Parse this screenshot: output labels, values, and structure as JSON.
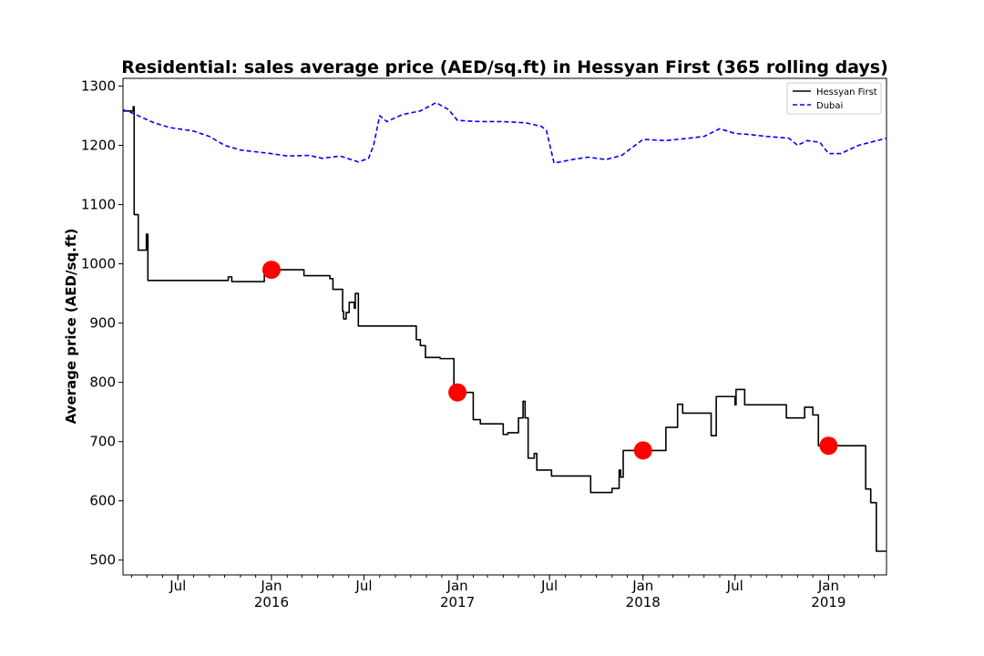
{
  "chart_data": {
    "type": "line",
    "title": "Residential: sales average price (AED/sq.ft) in Hessyan First (365 rolling days)",
    "xlabel": "",
    "ylabel": "Average price (AED/sq.ft)",
    "xlim": [
      "2015-03-15",
      "2019-04-25"
    ],
    "ylim": [
      475,
      1313
    ],
    "y_ticks": [
      500,
      600,
      700,
      800,
      900,
      1000,
      1100,
      1200,
      1300
    ],
    "x_ticks": [
      {
        "date": "2015-07-01",
        "label": "Jul",
        "sublabel": ""
      },
      {
        "date": "2016-01-01",
        "label": "Jan",
        "sublabel": "2016"
      },
      {
        "date": "2016-07-01",
        "label": "Jul",
        "sublabel": ""
      },
      {
        "date": "2017-01-01",
        "label": "Jan",
        "sublabel": "2017"
      },
      {
        "date": "2017-07-01",
        "label": "Jul",
        "sublabel": ""
      },
      {
        "date": "2018-01-01",
        "label": "Jan",
        "sublabel": "2018"
      },
      {
        "date": "2018-07-01",
        "label": "Jul",
        "sublabel": ""
      },
      {
        "date": "2019-01-01",
        "label": "Jan",
        "sublabel": "2019"
      }
    ],
    "legend": {
      "placement": "upper right"
    },
    "series": [
      {
        "name": "Hessyan First",
        "color": "#000000",
        "style": "solid",
        "step": true,
        "points": [
          [
            "2015-03-15",
            1258
          ],
          [
            "2015-04-03",
            1258
          ],
          [
            "2015-04-04",
            1265
          ],
          [
            "2015-04-06",
            1083
          ],
          [
            "2015-04-14",
            1023
          ],
          [
            "2015-04-30",
            1050
          ],
          [
            "2015-05-03",
            972
          ],
          [
            "2015-10-01",
            972
          ],
          [
            "2015-10-08",
            978
          ],
          [
            "2015-10-15",
            970
          ],
          [
            "2015-12-15",
            970
          ],
          [
            "2015-12-18",
            990
          ],
          [
            "2016-03-05",
            980
          ],
          [
            "2016-04-25",
            975
          ],
          [
            "2016-05-01",
            957
          ],
          [
            "2016-05-20",
            920
          ],
          [
            "2016-05-22",
            907
          ],
          [
            "2016-05-27",
            918
          ],
          [
            "2016-06-02",
            935
          ],
          [
            "2016-06-12",
            925
          ],
          [
            "2016-06-14",
            950
          ],
          [
            "2016-06-20",
            895
          ],
          [
            "2016-10-10",
            895
          ],
          [
            "2016-10-12",
            872
          ],
          [
            "2016-10-20",
            862
          ],
          [
            "2016-10-30",
            842
          ],
          [
            "2016-11-28",
            840
          ],
          [
            "2016-12-25",
            783
          ],
          [
            "2017-02-01",
            737
          ],
          [
            "2017-02-15",
            730
          ],
          [
            "2017-04-01",
            712
          ],
          [
            "2017-04-10",
            715
          ],
          [
            "2017-05-01",
            740
          ],
          [
            "2017-05-10",
            768
          ],
          [
            "2017-05-14",
            740
          ],
          [
            "2017-05-20",
            672
          ],
          [
            "2017-06-01",
            680
          ],
          [
            "2017-06-06",
            652
          ],
          [
            "2017-07-05",
            642
          ],
          [
            "2017-09-20",
            614
          ],
          [
            "2017-11-01",
            621
          ],
          [
            "2017-11-15",
            652
          ],
          [
            "2017-11-18",
            640
          ],
          [
            "2017-11-23",
            685
          ],
          [
            "2018-02-15",
            724
          ],
          [
            "2018-03-10",
            763
          ],
          [
            "2018-03-20",
            748
          ],
          [
            "2018-05-15",
            710
          ],
          [
            "2018-05-25",
            776
          ],
          [
            "2018-07-01",
            762
          ],
          [
            "2018-07-03",
            788
          ],
          [
            "2018-07-20",
            762
          ],
          [
            "2018-10-10",
            740
          ],
          [
            "2018-11-15",
            758
          ],
          [
            "2018-12-01",
            745
          ],
          [
            "2018-12-12",
            693
          ],
          [
            "2019-03-15",
            620
          ],
          [
            "2019-03-25",
            597
          ],
          [
            "2019-04-05",
            515
          ],
          [
            "2019-04-25",
            515
          ]
        ]
      },
      {
        "name": "Dubai",
        "color": "#0000ff",
        "style": "dashed",
        "step": false,
        "points": [
          [
            "2015-03-15",
            1260
          ],
          [
            "2015-04-01",
            1255
          ],
          [
            "2015-05-15",
            1238
          ],
          [
            "2015-06-15",
            1230
          ],
          [
            "2015-08-01",
            1224
          ],
          [
            "2015-09-01",
            1215
          ],
          [
            "2015-10-01",
            1200
          ],
          [
            "2015-11-01",
            1192
          ],
          [
            "2016-01-01",
            1186
          ],
          [
            "2016-02-01",
            1182
          ],
          [
            "2016-03-15",
            1183
          ],
          [
            "2016-04-10",
            1178
          ],
          [
            "2016-05-15",
            1182
          ],
          [
            "2016-06-20",
            1172
          ],
          [
            "2016-07-10",
            1178
          ],
          [
            "2016-07-20",
            1200
          ],
          [
            "2016-08-01",
            1250
          ],
          [
            "2016-08-15",
            1240
          ],
          [
            "2016-09-15",
            1252
          ],
          [
            "2016-10-20",
            1258
          ],
          [
            "2016-11-20",
            1272
          ],
          [
            "2016-12-15",
            1260
          ],
          [
            "2017-01-01",
            1242
          ],
          [
            "2017-02-15",
            1240
          ],
          [
            "2017-04-01",
            1240
          ],
          [
            "2017-05-15",
            1238
          ],
          [
            "2017-06-15",
            1232
          ],
          [
            "2017-06-25",
            1225
          ],
          [
            "2017-07-10",
            1170
          ],
          [
            "2017-08-15",
            1176
          ],
          [
            "2017-09-15",
            1180
          ],
          [
            "2017-10-20",
            1176
          ],
          [
            "2017-11-20",
            1183
          ],
          [
            "2018-01-01",
            1210
          ],
          [
            "2018-02-15",
            1208
          ],
          [
            "2018-04-01",
            1212
          ],
          [
            "2018-05-01",
            1215
          ],
          [
            "2018-06-01",
            1228
          ],
          [
            "2018-07-01",
            1220
          ],
          [
            "2018-08-01",
            1218
          ],
          [
            "2018-09-01",
            1215
          ],
          [
            "2018-10-15",
            1212
          ],
          [
            "2018-11-01",
            1200
          ],
          [
            "2018-11-20",
            1208
          ],
          [
            "2018-12-15",
            1205
          ],
          [
            "2019-01-01",
            1186
          ],
          [
            "2019-01-25",
            1186
          ],
          [
            "2019-03-01",
            1200
          ],
          [
            "2019-04-25",
            1212
          ]
        ]
      }
    ],
    "markers": [
      {
        "date": "2016-01-01",
        "value": 990,
        "color": "#ff0000"
      },
      {
        "date": "2017-01-01",
        "value": 783,
        "color": "#ff0000"
      },
      {
        "date": "2018-01-01",
        "value": 685,
        "color": "#ff0000"
      },
      {
        "date": "2019-01-01",
        "value": 693,
        "color": "#ff0000"
      }
    ]
  }
}
